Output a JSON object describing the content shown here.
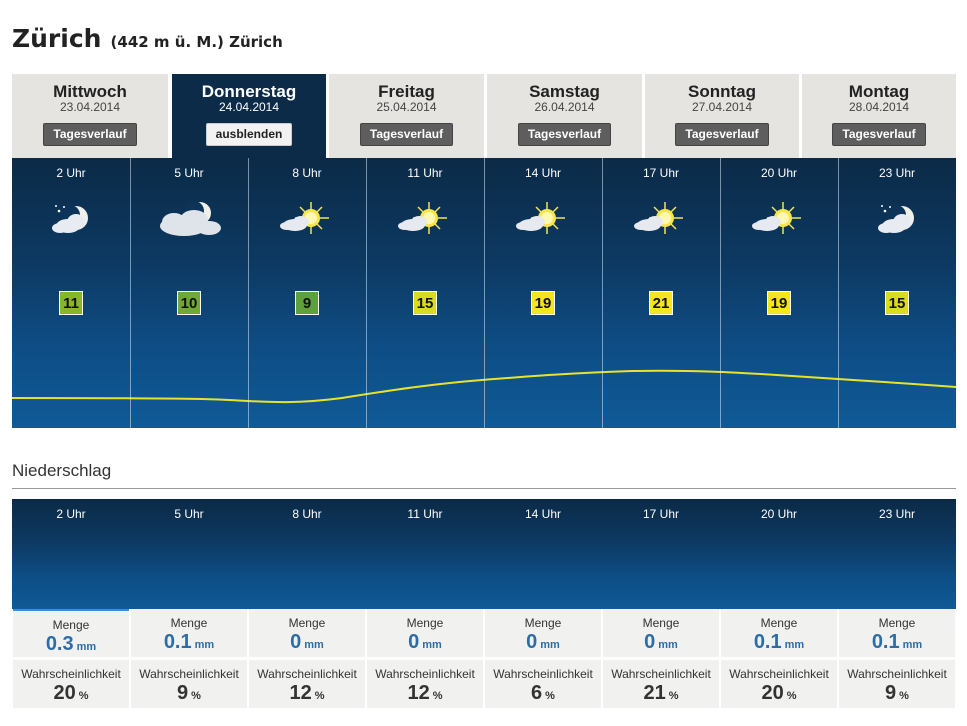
{
  "header": {
    "city": "Zürich",
    "subtitle": "(442 m ü. M.) Zürich"
  },
  "days": [
    {
      "name": "Mittwoch",
      "date": "23.04.2014",
      "button": "Tagesverlauf",
      "active": false
    },
    {
      "name": "Donnerstag",
      "date": "24.04.2014",
      "button": "ausblenden",
      "active": true
    },
    {
      "name": "Freitag",
      "date": "25.04.2014",
      "button": "Tagesverlauf",
      "active": false
    },
    {
      "name": "Samstag",
      "date": "26.04.2014",
      "button": "Tagesverlauf",
      "active": false
    },
    {
      "name": "Sonntag",
      "date": "27.04.2014",
      "button": "Tagesverlauf",
      "active": false
    },
    {
      "name": "Montag",
      "date": "28.04.2014",
      "button": "Tagesverlauf",
      "active": false
    }
  ],
  "hours": [
    {
      "hour": "2 Uhr",
      "temp": "11",
      "temp_color": "#8ab526",
      "icon": "moon-light-cloud-icon"
    },
    {
      "hour": "5 Uhr",
      "temp": "10",
      "temp_color": "#6fa834",
      "icon": "moon-cloud-icon"
    },
    {
      "hour": "8 Uhr",
      "temp": "9",
      "temp_color": "#5fa03a",
      "icon": "sun-light-cloud-icon"
    },
    {
      "hour": "11 Uhr",
      "temp": "15",
      "temp_color": "#d9dc1a",
      "icon": "sun-light-cloud-icon"
    },
    {
      "hour": "14 Uhr",
      "temp": "19",
      "temp_color": "#f5e51a",
      "icon": "sun-light-cloud-icon"
    },
    {
      "hour": "17 Uhr",
      "temp": "21",
      "temp_color": "#f6e51c",
      "icon": "sun-light-cloud-icon"
    },
    {
      "hour": "20 Uhr",
      "temp": "19",
      "temp_color": "#f5e51a",
      "icon": "sun-light-cloud-icon"
    },
    {
      "hour": "23 Uhr",
      "temp": "15",
      "temp_color": "#d9dc1a",
      "icon": "moon-light-cloud-icon"
    }
  ],
  "niederschlag": {
    "heading": "Niederschlag",
    "menge_label": "Menge",
    "wahr_label": "Wahrscheinlichkeit",
    "mm_unit": "mm",
    "pct_unit": "%",
    "menge": [
      "0.3",
      "0.1",
      "0",
      "0",
      "0",
      "0",
      "0.1",
      "0.1"
    ],
    "wahr": [
      "20",
      "9",
      "12",
      "12",
      "6",
      "21",
      "20",
      "9"
    ]
  },
  "colors": {
    "accent": "#0c2b49",
    "rain_value": "#2d6da6",
    "curve": "#e8e22a"
  }
}
